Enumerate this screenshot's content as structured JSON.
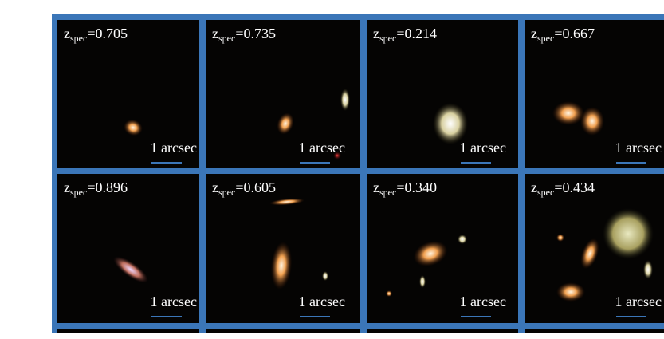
{
  "panels": [
    {
      "redshift": {
        "symbol": "z",
        "subscript": "spec",
        "value": "=0.705"
      },
      "scale_label": "1 arcsec"
    },
    {
      "redshift": {
        "symbol": "z",
        "subscript": "spec",
        "value": "=0.735"
      },
      "scale_label": "1 arcsec"
    },
    {
      "redshift": {
        "symbol": "z",
        "subscript": "spec",
        "value": "=0.214"
      },
      "scale_label": "1 arcsec"
    },
    {
      "redshift": {
        "symbol": "z",
        "subscript": "spec",
        "value": "=0.667"
      },
      "scale_label": "1 arcsec"
    },
    {
      "redshift": {
        "symbol": "z",
        "subscript": "spec",
        "value": "=0.896"
      },
      "scale_label": "1 arcsec"
    },
    {
      "redshift": {
        "symbol": "z",
        "subscript": "spec",
        "value": "=0.605"
      },
      "scale_label": "1 arcsec"
    },
    {
      "redshift": {
        "symbol": "z",
        "subscript": "spec",
        "value": "=0.340"
      },
      "scale_label": "1 arcsec"
    },
    {
      "redshift": {
        "symbol": "z",
        "subscript": "spec",
        "value": "=0.434"
      },
      "scale_label": "1 arcsec"
    }
  ]
}
